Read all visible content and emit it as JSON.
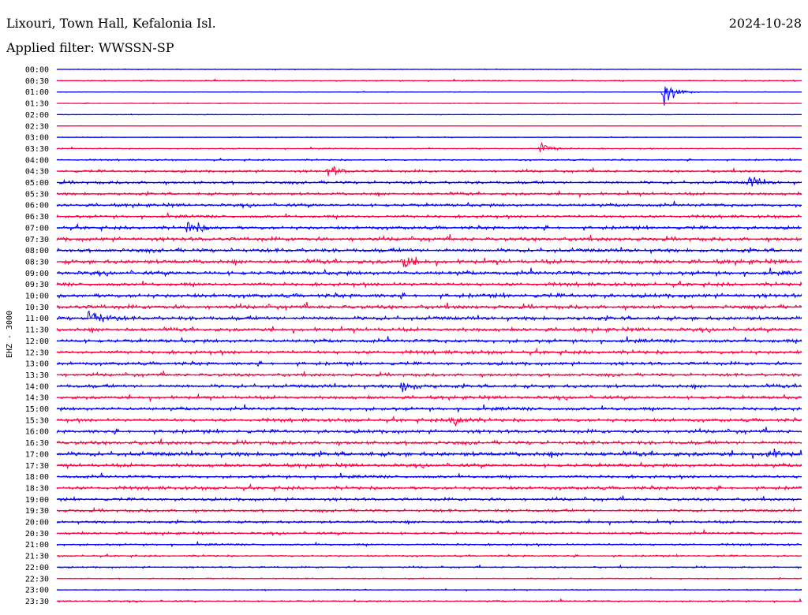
{
  "header": {
    "station": "Lixouri, Town Hall, Kefalonia Isl.",
    "date": "2024-10-28",
    "filter": "Applied filter: WWSSN-SP"
  },
  "chart_data": {
    "type": "line",
    "title": "Lixouri, Town Hall, Kefalonia Isl.",
    "subtitle": "Applied filter: WWSSN-SP",
    "ylabel": "EHZ - 3000",
    "colors": [
      "#0000ff",
      "#ff0040"
    ],
    "tick_labels": [
      "00:00",
      "00:30",
      "01:00",
      "01:30",
      "02:00",
      "02:30",
      "03:00",
      "03:30",
      "04:00",
      "04:30",
      "05:00",
      "05:30",
      "06:00",
      "06:30",
      "07:00",
      "07:30",
      "08:00",
      "08:30",
      "09:00",
      "09:30",
      "10:00",
      "10:30",
      "11:00",
      "11:30",
      "12:00",
      "12:30",
      "13:00",
      "13:30",
      "14:00",
      "14:30",
      "15:00",
      "15:30",
      "16:00",
      "16:30",
      "17:00",
      "17:30",
      "18:00",
      "18:30",
      "19:00",
      "19:30",
      "20:00",
      "20:30",
      "21:00",
      "21:30",
      "22:00",
      "22:30",
      "23:00",
      "23:30"
    ],
    "noise": [
      0.3,
      0.5,
      0.3,
      0.3,
      0.3,
      0.2,
      0.4,
      0.5,
      0.7,
      1.1,
      1.3,
      1.3,
      1.4,
      1.3,
      1.5,
      1.7,
      1.8,
      1.9,
      1.8,
      1.6,
      1.8,
      1.8,
      1.8,
      1.7,
      1.6,
      1.6,
      1.5,
      1.4,
      1.6,
      1.5,
      1.5,
      1.5,
      1.6,
      1.7,
      2.0,
      1.6,
      1.3,
      1.5,
      1.3,
      1.3,
      1.2,
      1.1,
      0.9,
      0.8,
      0.7,
      0.6,
      0.5,
      0.7
    ],
    "events": [
      {
        "row": 2,
        "x": 0.815,
        "amp": 16
      },
      {
        "row": 22,
        "x": 0.045,
        "amp": 14
      },
      {
        "row": 28,
        "x": 0.465,
        "amp": 8
      },
      {
        "row": 31,
        "x": 0.53,
        "amp": 9
      },
      {
        "row": 14,
        "x": 0.177,
        "amp": 10
      },
      {
        "row": 9,
        "x": 0.365,
        "amp": 7
      },
      {
        "row": 17,
        "x": 0.465,
        "amp": 7
      },
      {
        "row": 34,
        "x": 0.955,
        "amp": 6
      },
      {
        "row": 7,
        "x": 0.65,
        "amp": 8
      },
      {
        "row": 10,
        "x": 0.93,
        "amp": 8
      }
    ]
  }
}
